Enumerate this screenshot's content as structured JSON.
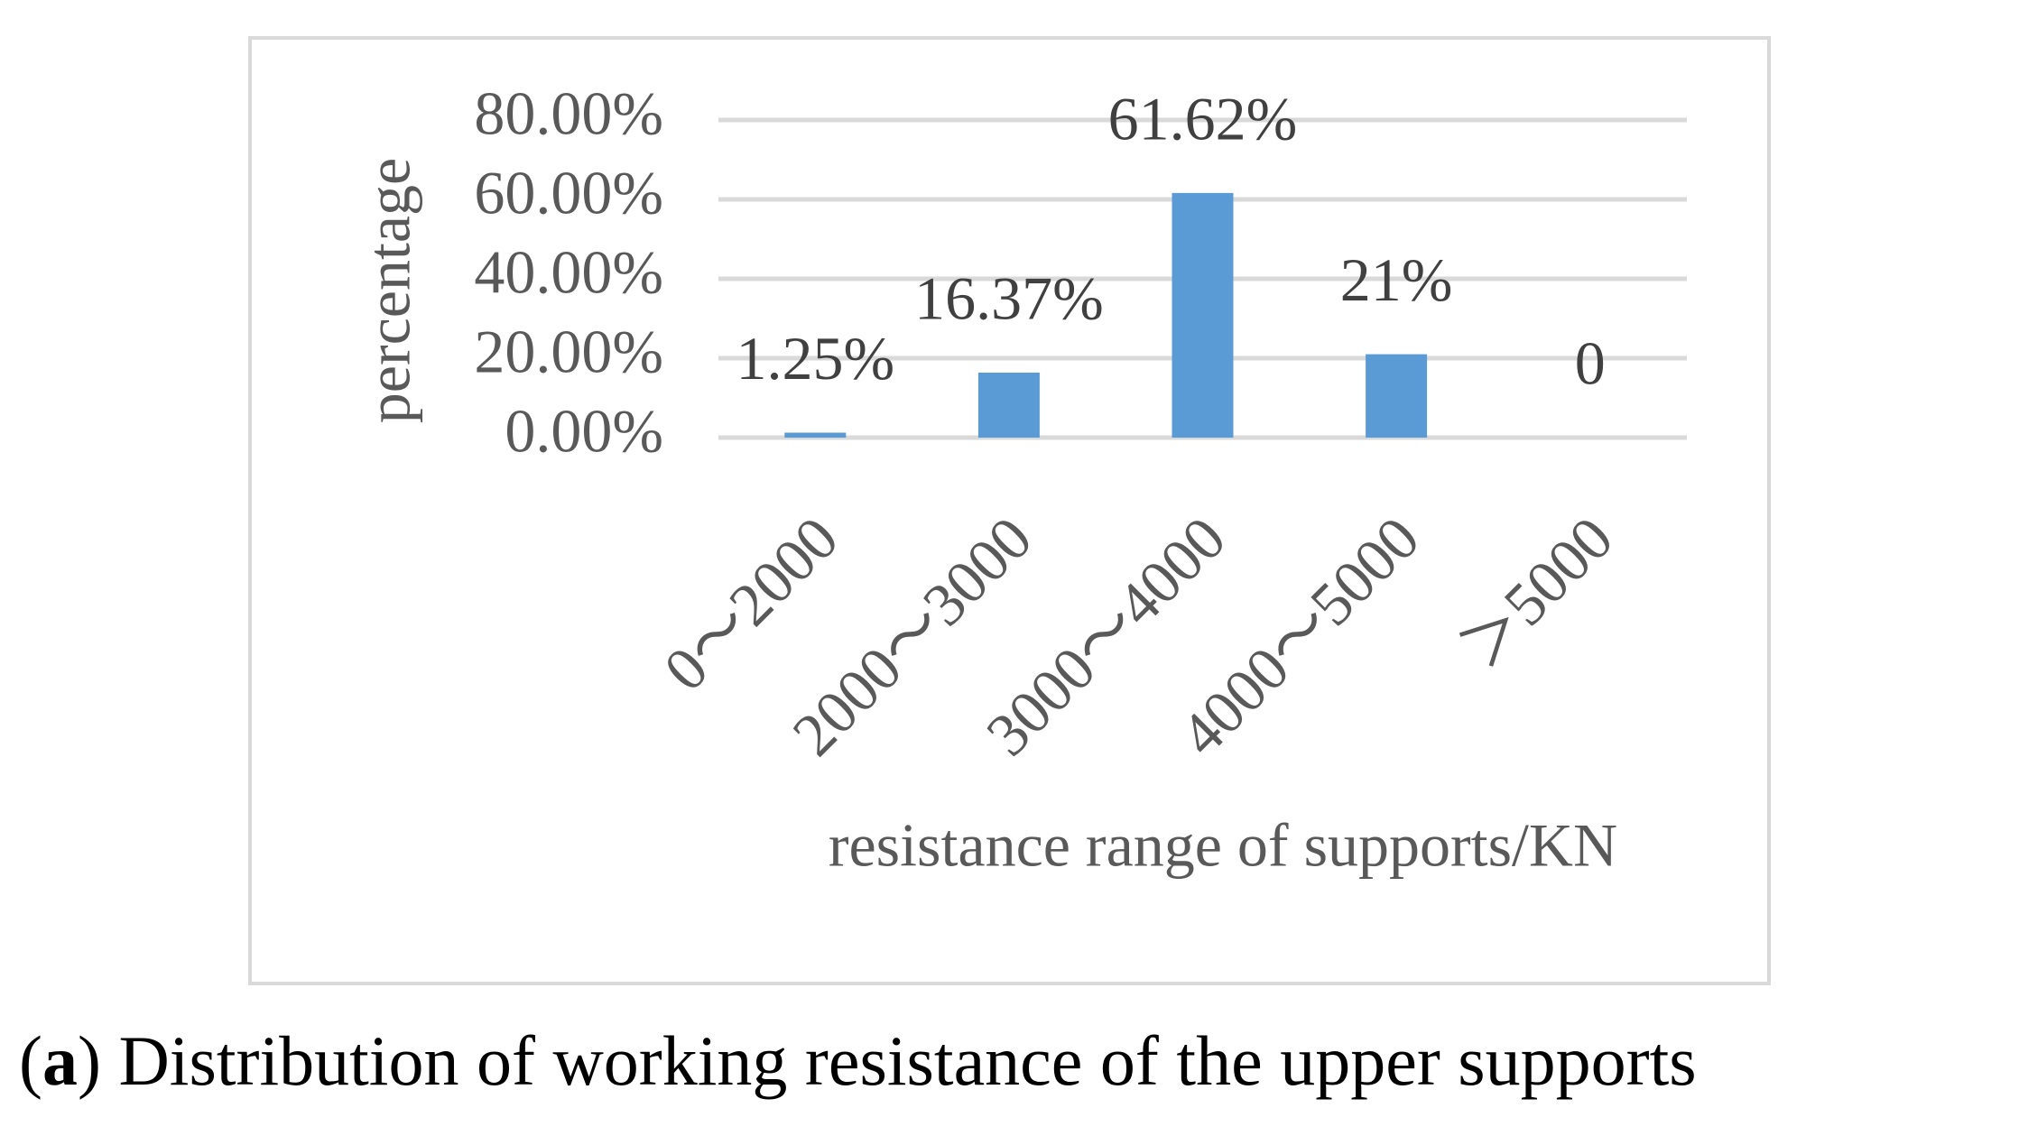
{
  "chart_data": {
    "type": "bar",
    "categories": [
      "0～2000",
      "2000～3000",
      "3000～4000",
      "4000～5000",
      "＞5000"
    ],
    "values": [
      1.25,
      16.37,
      61.62,
      21,
      0
    ],
    "value_labels": [
      "1.25%",
      "16.37%",
      "61.62%",
      "21%",
      "0"
    ],
    "color": "#5b9bd5",
    "ylim": [
      0,
      80
    ],
    "yticks": [
      {
        "value": 0,
        "label": "0.00%"
      },
      {
        "value": 20,
        "label": "20.00%"
      },
      {
        "value": 40,
        "label": "40.00%"
      },
      {
        "value": 60,
        "label": "60.00%"
      },
      {
        "value": 80,
        "label": "80.00%"
      }
    ],
    "grid": true,
    "x_label": "resistance range of supports/KN",
    "y_label": "percentage"
  },
  "caption_parts": [
    "(",
    "a",
    ") Distribution of working resistance of the upper supports"
  ]
}
